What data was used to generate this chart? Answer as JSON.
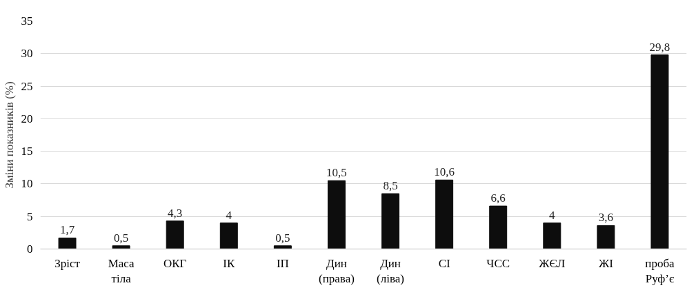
{
  "chart_data": {
    "type": "bar",
    "ylabel": "Зміни показників (%)",
    "categories": [
      "Зріст",
      "Маса\nтіла",
      "ОКГ",
      "ІК",
      "ІП",
      "Дин\n(права)",
      "Дин\n(ліва)",
      "СІ",
      "ЧСС",
      "ЖЄЛ",
      "ЖІ",
      "проба\nРуф’є"
    ],
    "values": [
      1.7,
      0.5,
      4.3,
      4,
      0.5,
      10.5,
      8.5,
      10.6,
      6.6,
      4,
      3.6,
      29.8
    ],
    "value_labels": [
      "1,7",
      "0,5",
      "4,3",
      "4",
      "0,5",
      "10,5",
      "8,5",
      "10,6",
      "6,6",
      "4",
      "3,6",
      "29,8"
    ],
    "color": "#0d0d0d",
    "ylim": [
      0,
      35
    ],
    "yticks": [
      0,
      5,
      10,
      15,
      20,
      25,
      30,
      35
    ],
    "grid": "y"
  }
}
